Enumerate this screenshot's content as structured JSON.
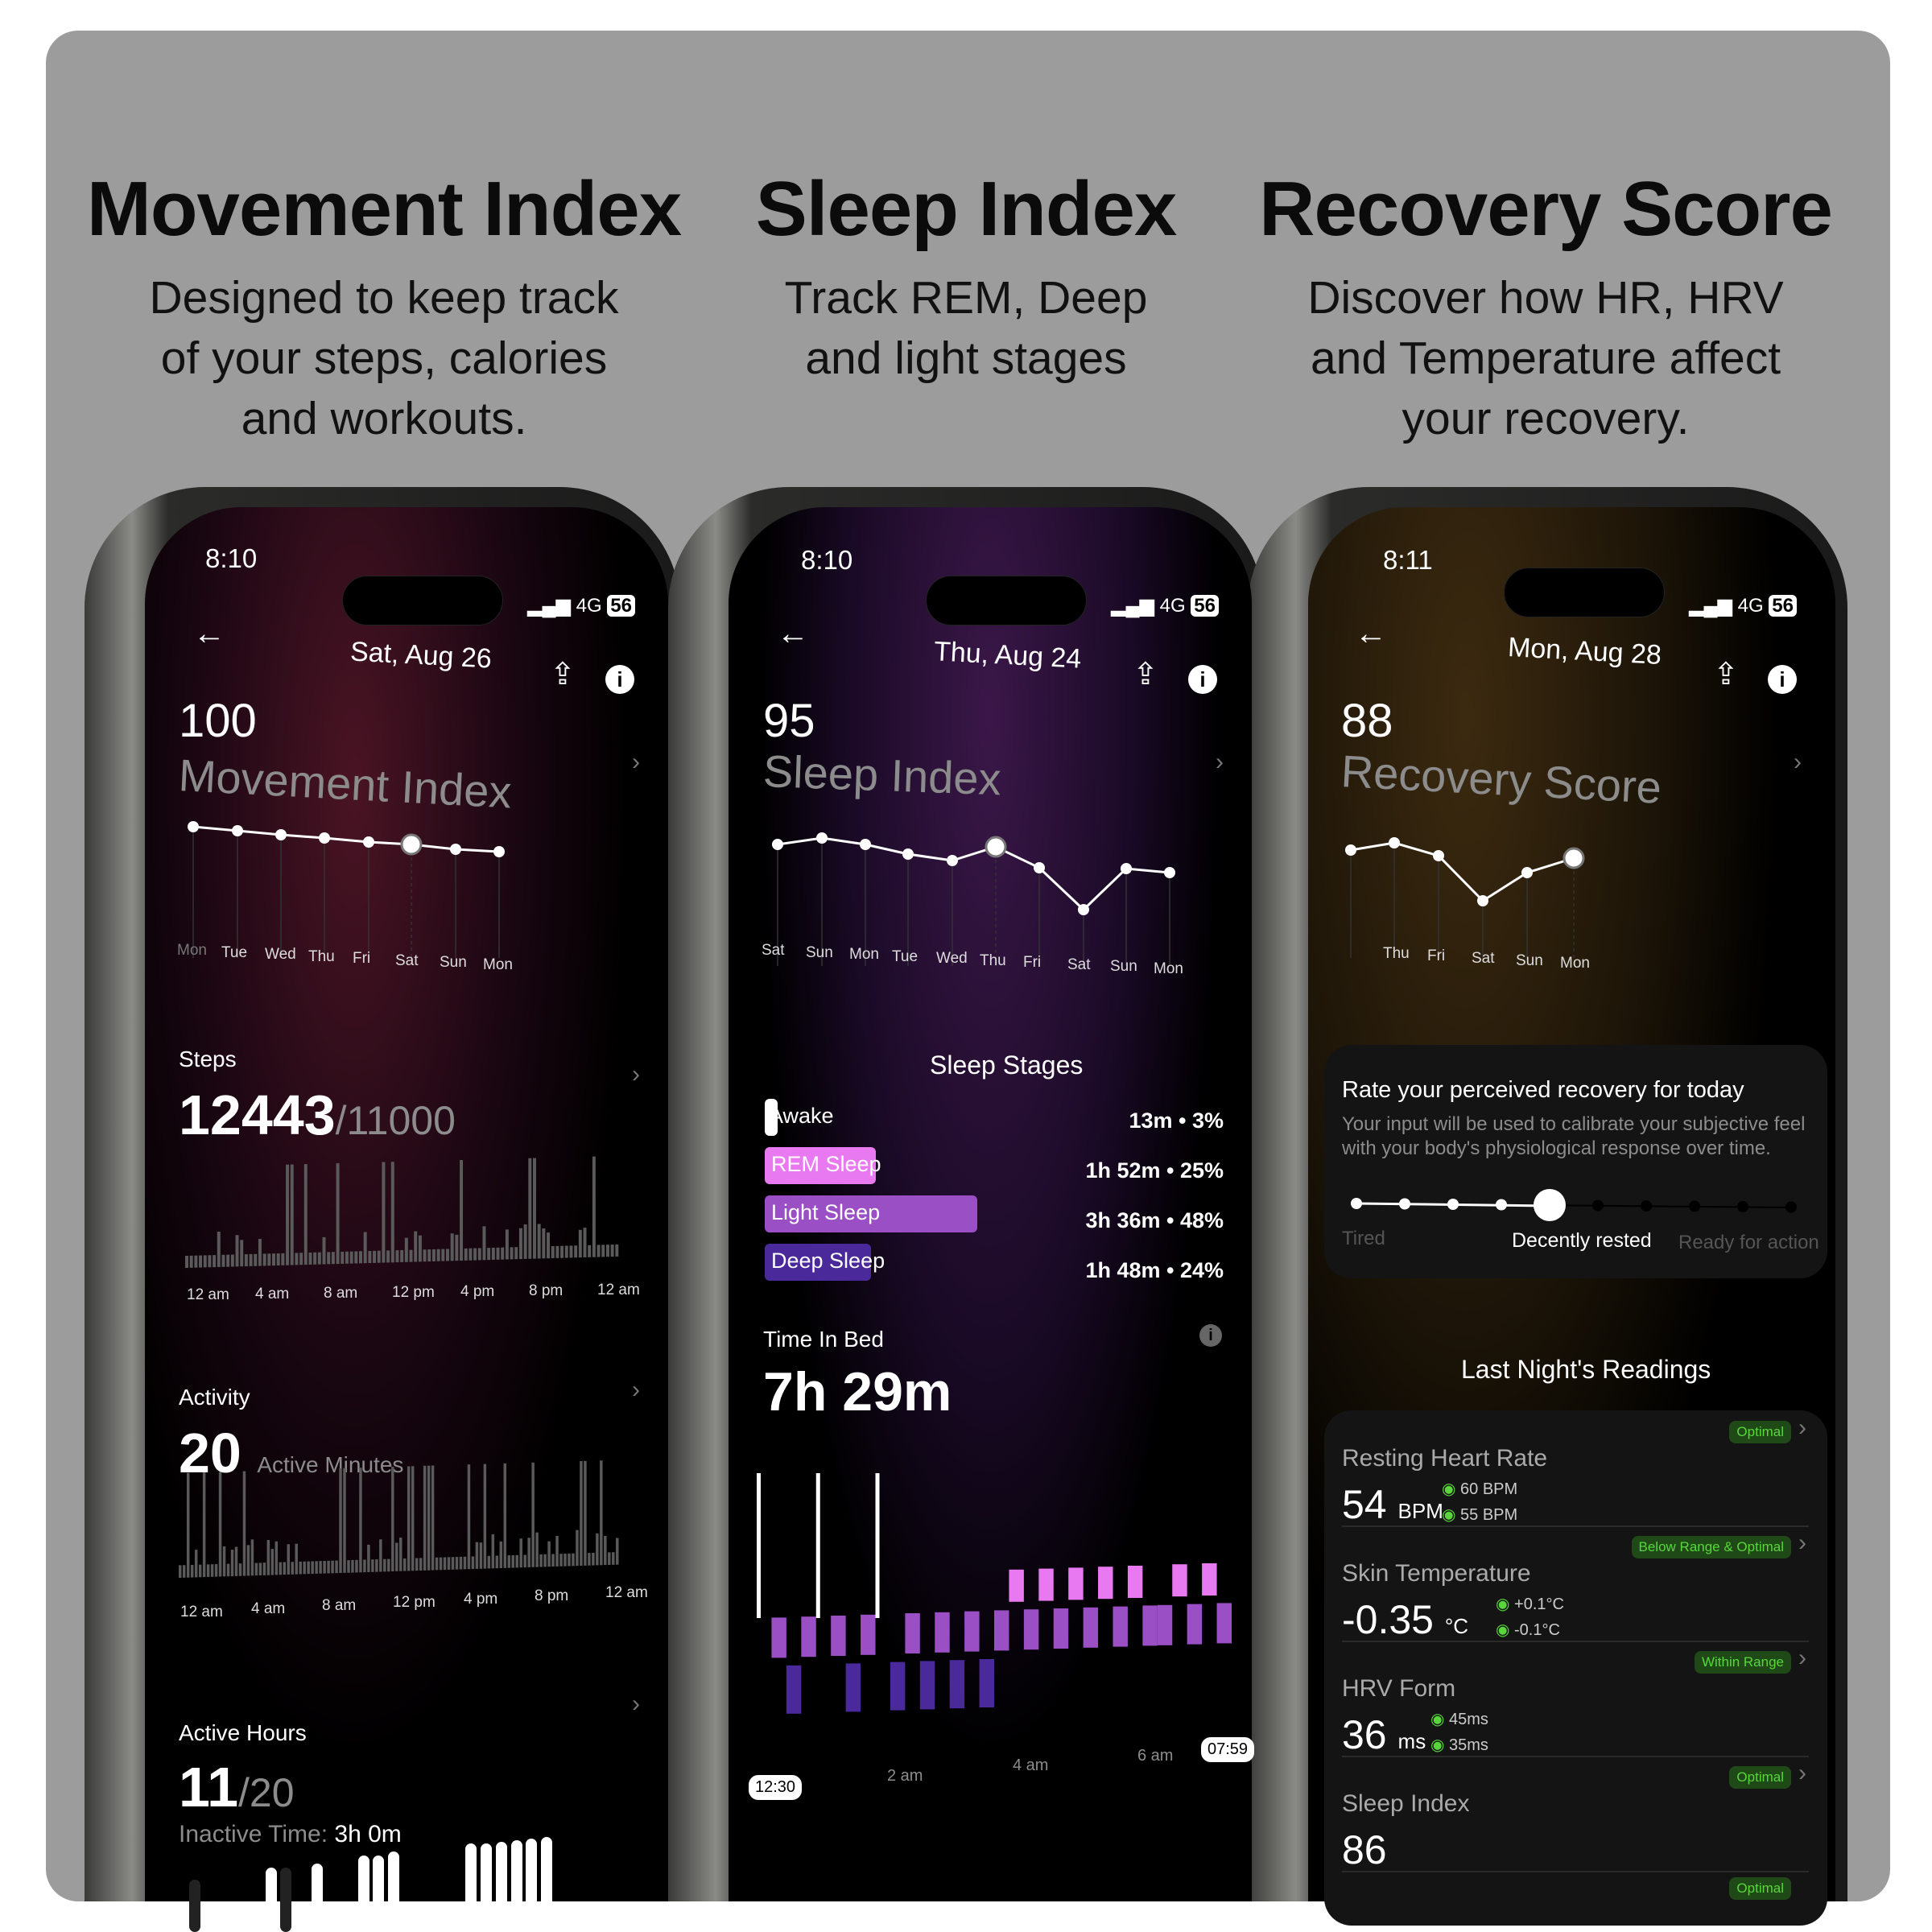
{
  "columns": [
    {
      "title": "Movement Index",
      "subtitle": [
        "Designed to keep track",
        "of your steps, calories",
        "and workouts."
      ]
    },
    {
      "title": "Sleep Index",
      "subtitle": [
        "Track REM, Deep",
        "and light stages"
      ]
    },
    {
      "title": "Recovery Score",
      "subtitle": [
        "Discover how HR, HRV",
        "and Temperature affect",
        "your recovery."
      ]
    }
  ],
  "status": {
    "network": "4G",
    "battery": "56"
  },
  "movement": {
    "time": "8:10",
    "date": "Sat, Aug 26",
    "score": "100",
    "label": "Movement Index",
    "days": [
      "Mon",
      "Tue",
      "Wed",
      "Thu",
      "Fri",
      "Sat",
      "Sun",
      "Mon"
    ],
    "selected_day": 5,
    "steps": {
      "title": "Steps",
      "value": "12443",
      "goal": "/11000",
      "hours": [
        "12 am",
        "4 am",
        "8 am",
        "12 pm",
        "4 pm",
        "8 pm",
        "12 am"
      ]
    },
    "activity": {
      "title": "Activity",
      "value": "20",
      "unit": "Active Minutes",
      "hours": [
        "12 am",
        "4 am",
        "8 am",
        "12 pm",
        "4 pm",
        "8 pm",
        "12 am"
      ]
    },
    "active_hours": {
      "title": "Active Hours",
      "value": "11",
      "goal": "/20",
      "inactive_label": "Inactive Time:",
      "inactive_value": "3h 0m"
    }
  },
  "sleep": {
    "time": "8:10",
    "date": "Thu, Aug 24",
    "score": "95",
    "label": "Sleep Index",
    "days": [
      "Sat",
      "Sun",
      "Mon",
      "Tue",
      "Wed",
      "Thu",
      "Fri",
      "Sat",
      "Sun",
      "Mon"
    ],
    "selected_day": 5,
    "stages_title": "Sleep Stages",
    "stages": [
      {
        "name": "Awake",
        "value": "13m • 3%",
        "color": "#ffffff",
        "pct": 3
      },
      {
        "name": "REM Sleep",
        "value": "1h 52m • 25%",
        "color": "#e879f0",
        "pct": 25
      },
      {
        "name": "Light Sleep",
        "value": "3h 36m • 48%",
        "color": "#9a4fc4",
        "pct": 48
      },
      {
        "name": "Deep Sleep",
        "value": "1h 48m • 24%",
        "color": "#4a2a9a",
        "pct": 24
      }
    ],
    "time_in_bed_label": "Time In Bed",
    "time_in_bed": "7h 29m",
    "hypno_axis": [
      "2 am",
      "4 am",
      "6 am"
    ],
    "start": "12:30",
    "end": "07:59",
    "hypnogram": [
      "A",
      "L",
      "D",
      "L",
      "A",
      "L",
      "D",
      "L",
      "A",
      "D",
      "L",
      "D",
      "L",
      "D",
      "L",
      "D",
      "L",
      "R",
      "L",
      "R",
      "L",
      "R",
      "L",
      "R",
      "L",
      "R",
      "L",
      "L",
      "R",
      "L",
      "R",
      "L"
    ]
  },
  "recovery": {
    "time": "8:11",
    "date": "Mon, Aug 28",
    "score": "88",
    "label": "Recovery Score",
    "days": [
      "Thu",
      "Fri",
      "Sat",
      "Sun",
      "Mon"
    ],
    "rate": {
      "title": "Rate your perceived recovery for today",
      "desc1": "Your input will be used to calibrate your subjective feel",
      "desc2": "with your body's physiological response over time.",
      "low": "Tired",
      "mid": "Decently rested",
      "high": "Ready for action",
      "level": 5,
      "steps": 10
    },
    "readings_title": "Last Night's Readings",
    "readings": [
      {
        "name": "Resting Heart Rate",
        "value": "54",
        "unit": "BPM",
        "hi": "60 BPM",
        "lo": "55 BPM",
        "badge": "Optimal"
      },
      {
        "name": "Skin Temperature",
        "value": "-0.35",
        "unit": "°C",
        "hi": "+0.1°C",
        "lo": "-0.1°C",
        "badge": "Below Range & Optimal"
      },
      {
        "name": "HRV Form",
        "value": "36",
        "unit": "ms",
        "hi": "45ms",
        "lo": "35ms",
        "badge": "Within Range"
      },
      {
        "name": "Sleep Index",
        "value": "86",
        "unit": "",
        "hi": "",
        "lo": "",
        "badge": "Optimal"
      }
    ],
    "next_badge": "Optimal"
  },
  "colors": {
    "accent_green": "#58d63c",
    "rem": "#e879f0",
    "light": "#9a4fc4",
    "deep": "#4a2a9a"
  }
}
